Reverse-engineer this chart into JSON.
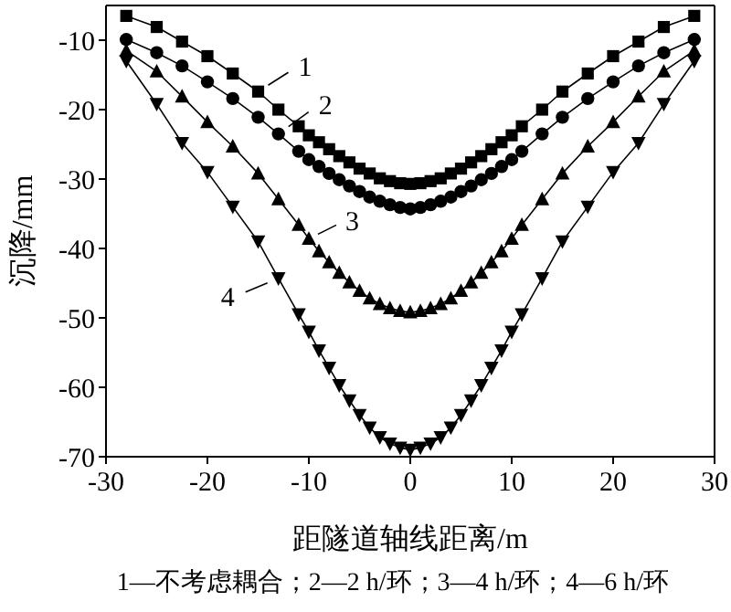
{
  "chart_data": {
    "type": "line",
    "xlabel": "距隧道轴线距离/m",
    "ylabel": "沉降/mm",
    "x": [
      -28,
      -25,
      -22.5,
      -20,
      -17.5,
      -15,
      -13,
      -11,
      -10,
      -9,
      -8,
      -7,
      -6,
      -5,
      -4,
      -3,
      -2,
      -1,
      0,
      1,
      2,
      3,
      4,
      5,
      6,
      7,
      8,
      9,
      10,
      11,
      13,
      15,
      17.5,
      20,
      22.5,
      25,
      28
    ],
    "series": [
      {
        "name": "1",
        "color": "#000000",
        "marker": "square",
        "values": [
          -6.5,
          -8.1,
          -10.2,
          -12.3,
          -14.8,
          -17.4,
          -20.0,
          -22.4,
          -23.7,
          -24.7,
          -25.7,
          -26.7,
          -27.6,
          -28.5,
          -29.2,
          -29.9,
          -30.3,
          -30.6,
          -30.7,
          -30.6,
          -30.3,
          -29.9,
          -29.2,
          -28.5,
          -27.6,
          -26.7,
          -25.7,
          -24.7,
          -23.7,
          -22.4,
          -20.0,
          -17.4,
          -14.8,
          -12.3,
          -10.2,
          -8.1,
          -6.5
        ]
      },
      {
        "name": "2",
        "color": "#000000",
        "marker": "circle",
        "values": [
          -9.9,
          -11.8,
          -13.7,
          -16.0,
          -18.4,
          -21.1,
          -23.5,
          -26.0,
          -27.2,
          -28.2,
          -29.2,
          -30.1,
          -31.0,
          -31.8,
          -32.6,
          -33.2,
          -33.7,
          -34.1,
          -34.3,
          -34.1,
          -33.7,
          -33.2,
          -32.6,
          -31.8,
          -31.0,
          -30.1,
          -29.2,
          -28.2,
          -27.2,
          -26.0,
          -23.5,
          -21.1,
          -18.4,
          -16.0,
          -13.7,
          -11.8,
          -9.9
        ]
      },
      {
        "name": "3",
        "color": "#000000",
        "marker": "triangle",
        "values": [
          -11.5,
          -14.5,
          -18.1,
          -21.8,
          -25.3,
          -29.2,
          -32.9,
          -36.6,
          -38.6,
          -40.4,
          -42.0,
          -43.5,
          -44.9,
          -46.1,
          -47.2,
          -48.0,
          -48.6,
          -49.0,
          -49.2,
          -49.0,
          -48.6,
          -48.0,
          -47.2,
          -46.1,
          -44.9,
          -43.5,
          -42.0,
          -40.4,
          -38.6,
          -36.6,
          -32.9,
          -29.2,
          -25.3,
          -21.8,
          -18.1,
          -14.5,
          -11.5
        ]
      },
      {
        "name": "4",
        "color": "#000000",
        "marker": "triangle_down",
        "values": [
          -13.0,
          -19.2,
          -24.8,
          -29.0,
          -34.0,
          -39.0,
          -44.3,
          -49.5,
          -52.0,
          -54.7,
          -57.2,
          -59.7,
          -61.9,
          -64.0,
          -65.8,
          -67.2,
          -68.1,
          -68.7,
          -69.0,
          -68.7,
          -68.1,
          -67.2,
          -65.8,
          -64.0,
          -61.9,
          -59.7,
          -57.2,
          -54.7,
          -52.0,
          -49.5,
          -44.3,
          -39.0,
          -34.0,
          -29.0,
          -24.8,
          -19.2,
          -13.0
        ]
      }
    ],
    "xlim": [
      -30,
      30
    ],
    "xticks": [
      -30,
      -20,
      -10,
      0,
      10,
      20,
      30
    ],
    "ylim": [
      -70,
      -5
    ],
    "yticks": [
      -70,
      -60,
      -50,
      -40,
      -30,
      -20,
      -10
    ],
    "grid": false,
    "legend": "left",
    "line_style": "solid",
    "annotations": [
      "1—不考虑耦合；2—2 h/环；3—4 h/环；4—6 h/环"
    ]
  }
}
